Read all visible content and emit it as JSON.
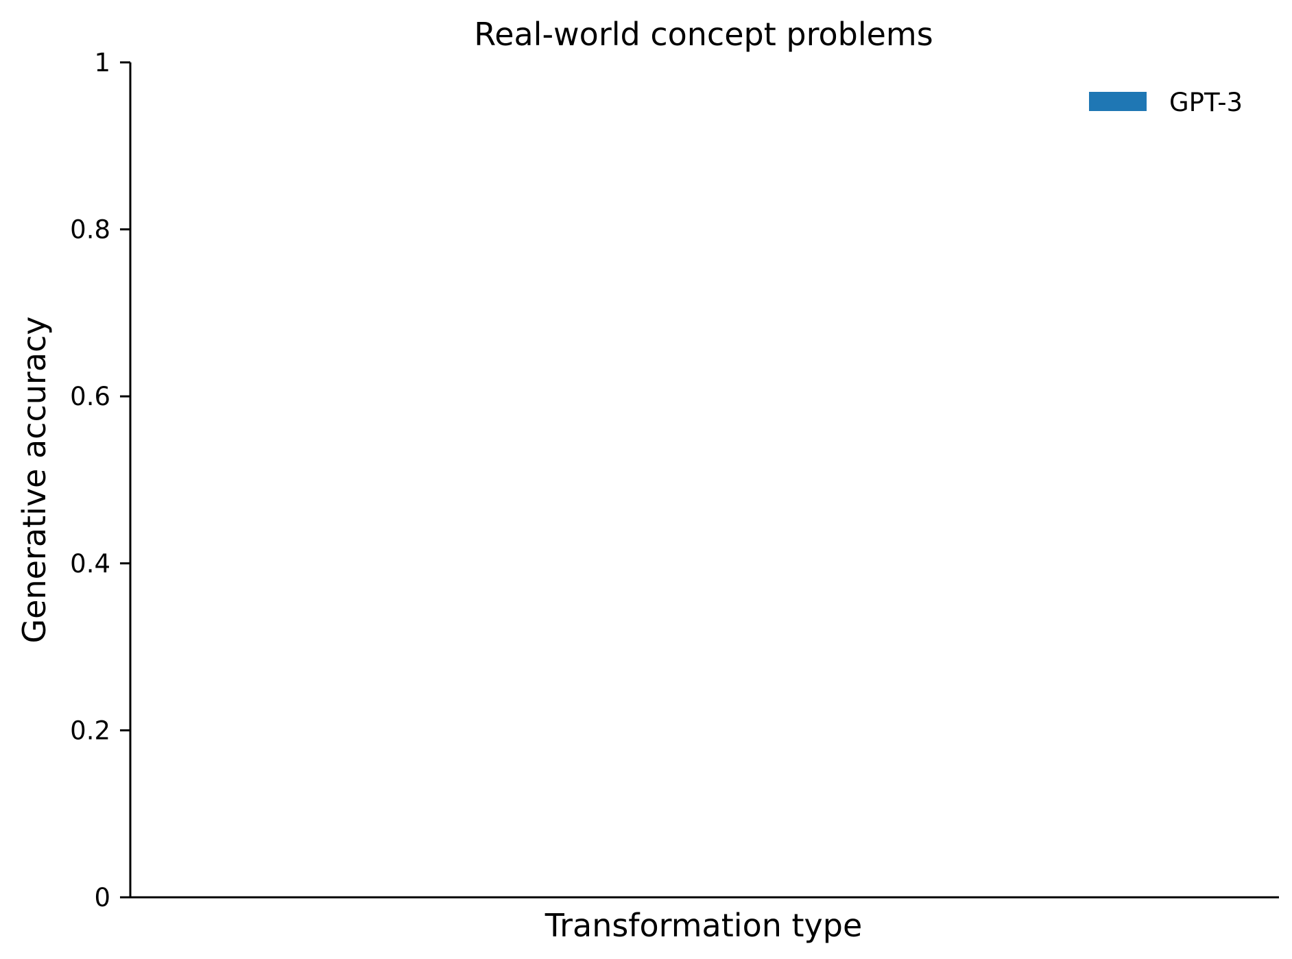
{
  "chart_data": {
    "type": "bar",
    "title": "Real-world concept problems",
    "xlabel": "Transformation type",
    "ylabel": "Generative accuracy",
    "ylim": [
      0,
      1
    ],
    "yticks": [
      {
        "value": 0,
        "label": "0"
      },
      {
        "value": 0.2,
        "label": "0.2"
      },
      {
        "value": 0.4,
        "label": "0.4"
      },
      {
        "value": 0.6,
        "label": "0.6"
      },
      {
        "value": 0.8,
        "label": "0.8"
      },
      {
        "value": 1,
        "label": "1"
      }
    ],
    "categories": [],
    "series": [
      {
        "name": "GPT-3",
        "color": "#1f77b4",
        "values": []
      }
    ],
    "grid": false,
    "legend": "top-right"
  }
}
